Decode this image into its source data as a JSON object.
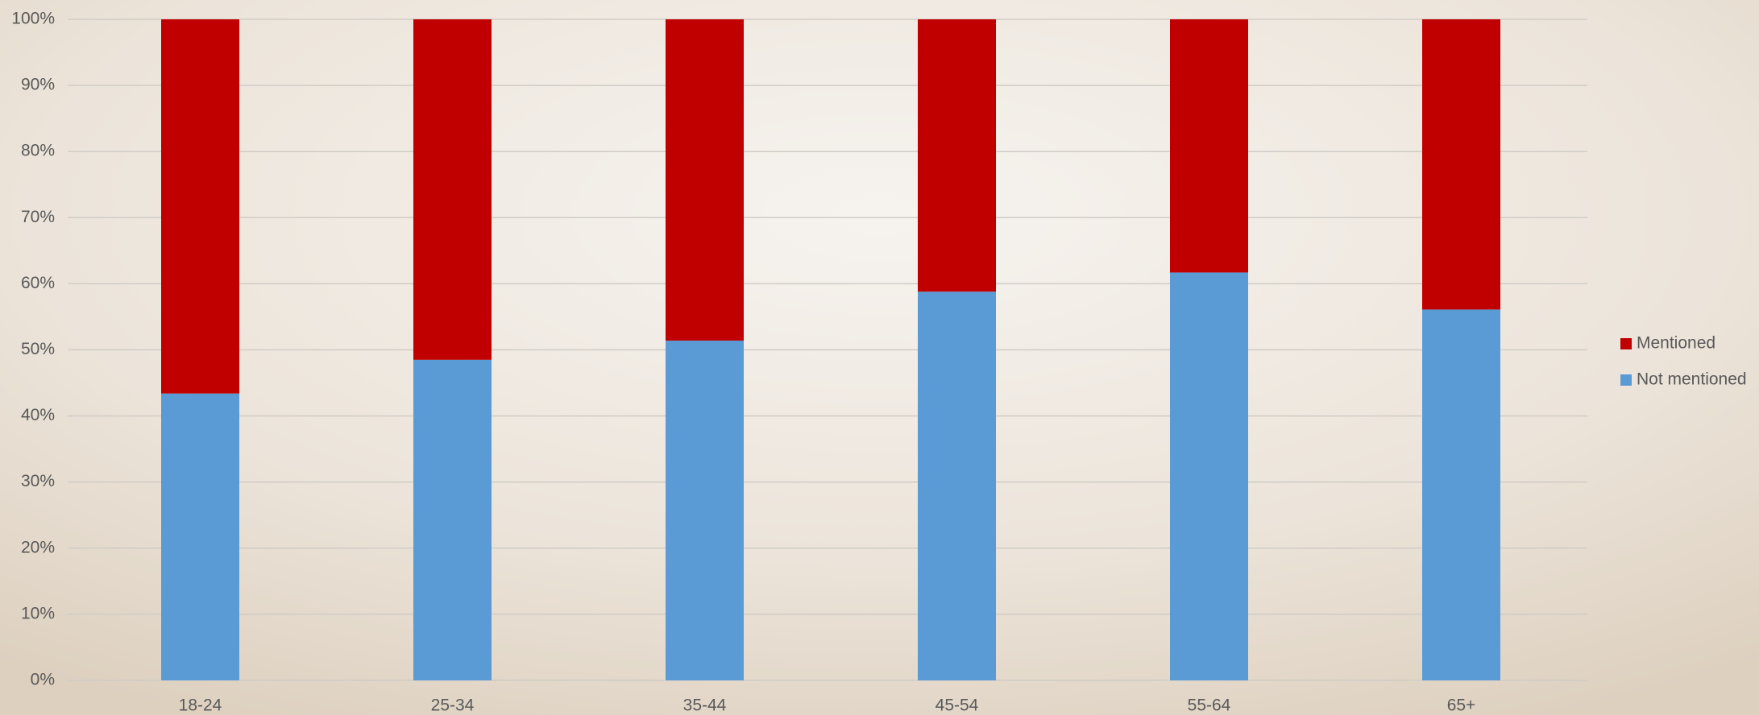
{
  "chart_data": {
    "type": "stacked_bar",
    "categories": [
      "18-24",
      "25-34",
      "35-44",
      "45-54",
      "55-64",
      "65+"
    ],
    "series": [
      {
        "name": "Not mentioned",
        "color": "#5b9bd5",
        "values": [
          43.4,
          48.5,
          51.4,
          58.8,
          61.7,
          56.1
        ]
      },
      {
        "name": "Mentioned",
        "color": "#c00000",
        "values": [
          56.6,
          51.5,
          48.6,
          41.2,
          38.3,
          43.9
        ]
      }
    ],
    "ylim": [
      0,
      100
    ],
    "yticks": [
      {
        "value": 0,
        "label": "0%"
      },
      {
        "value": 10,
        "label": "10%"
      },
      {
        "value": 20,
        "label": "20%"
      },
      {
        "value": 30,
        "label": "30%"
      },
      {
        "value": 40,
        "label": "40%"
      },
      {
        "value": 50,
        "label": "50%"
      },
      {
        "value": 60,
        "label": "60%"
      },
      {
        "value": 70,
        "label": "70%"
      },
      {
        "value": 80,
        "label": "80%"
      },
      {
        "value": 90,
        "label": "90%"
      },
      {
        "value": 100,
        "label": "100%"
      }
    ],
    "grid": true,
    "legend": "right"
  }
}
